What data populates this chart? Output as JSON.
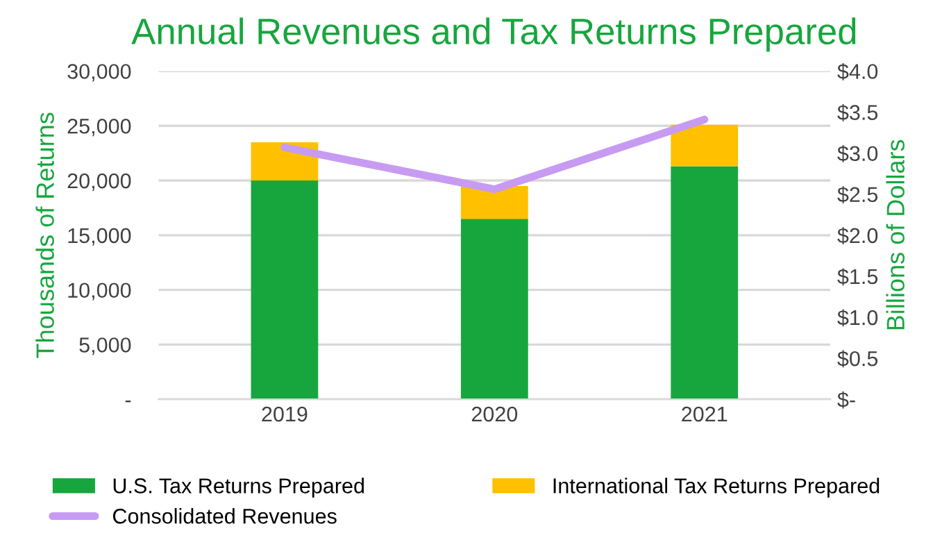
{
  "chart_data": {
    "type": "bar",
    "title": "Annual Revenues and Tax Returns Prepared",
    "categories": [
      "2019",
      "2020",
      "2021"
    ],
    "stacked": true,
    "series": [
      {
        "name": "U.S. Tax Returns Prepared",
        "color": "#17a63e",
        "values": [
          20000,
          16500,
          21300
        ]
      },
      {
        "name": "International Tax Returns Prepared",
        "color": "#ffc000",
        "values": [
          3500,
          3000,
          3800
        ]
      },
      {
        "name": "Consolidated Revenues",
        "type": "line",
        "axis": "y2",
        "color": "#c79bf2",
        "values": [
          3.07,
          2.56,
          3.41
        ]
      }
    ],
    "ylabel": "Thousands of Returns",
    "y2label": "Billions of Dollars",
    "ylim": [
      0,
      30000
    ],
    "yticks": [
      {
        "value": 0,
        "label": "-"
      },
      {
        "value": 5000,
        "label": "5,000"
      },
      {
        "value": 10000,
        "label": "10,000"
      },
      {
        "value": 15000,
        "label": "15,000"
      },
      {
        "value": 20000,
        "label": "20,000"
      },
      {
        "value": 25000,
        "label": "25,000"
      },
      {
        "value": 30000,
        "label": "30,000"
      }
    ],
    "y2lim": [
      0,
      4.0
    ],
    "y2ticks": [
      {
        "value": 0,
        "label": "$-"
      },
      {
        "value": 0.5,
        "label": "$0.5"
      },
      {
        "value": 1.0,
        "label": "$1.0"
      },
      {
        "value": 1.5,
        "label": "$1.5"
      },
      {
        "value": 2.0,
        "label": "$2.0"
      },
      {
        "value": 2.5,
        "label": "$2.5"
      },
      {
        "value": 3.0,
        "label": "$3.0"
      },
      {
        "value": 3.5,
        "label": "$3.5"
      },
      {
        "value": 4.0,
        "label": "$4.0"
      }
    ],
    "grid": "y",
    "legend": "bottom",
    "marker": "none",
    "line_style": "solid"
  }
}
